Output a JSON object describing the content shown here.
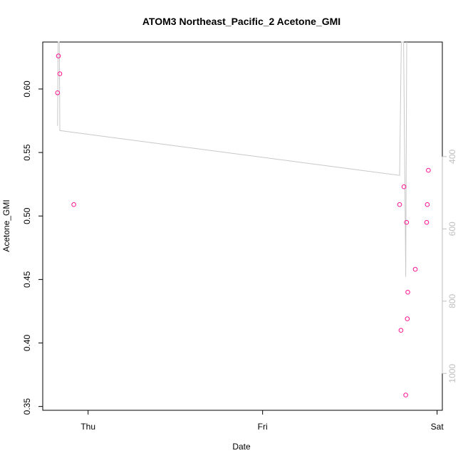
{
  "chart_data": {
    "type": "scatter",
    "title": "ATOM3 Northeast_Pacific_2 Acetone_GMI",
    "xlabel": "Date",
    "ylabel": "Acetone_GMI",
    "x_ticks": [
      "Thu",
      "Fri",
      "Sat"
    ],
    "y_ticks": [
      "0.35",
      "0.40",
      "0.45",
      "0.50",
      "0.55",
      "0.60"
    ],
    "y_right_ticks": [
      "400",
      "600",
      "800",
      "1000"
    ],
    "xlim": [
      -0.26,
      2.03
    ],
    "ylim": [
      0.347,
      0.637
    ],
    "y_right_lim": [
      83,
      1102
    ],
    "y_right_reversed": true,
    "grid": false,
    "colors": {
      "points": "#ff1493",
      "line": "#c8c8c8",
      "axis": "#000000",
      "right_axis": "#bebebe"
    },
    "series": [
      {
        "type": "scatter",
        "axis": "left",
        "points": [
          {
            "x": -0.175,
            "y": 0.597
          },
          {
            "x": -0.17,
            "y": 0.626
          },
          {
            "x": -0.162,
            "y": 0.612
          },
          {
            "x": -0.082,
            "y": 0.509
          },
          {
            "x": 1.785,
            "y": 0.509
          },
          {
            "x": 1.793,
            "y": 0.41
          },
          {
            "x": 1.81,
            "y": 0.523
          },
          {
            "x": 1.82,
            "y": 0.359
          },
          {
            "x": 1.825,
            "y": 0.495
          },
          {
            "x": 1.829,
            "y": 0.419
          },
          {
            "x": 1.832,
            "y": 0.44
          },
          {
            "x": 1.875,
            "y": 0.458
          },
          {
            "x": 1.94,
            "y": 0.495
          },
          {
            "x": 1.944,
            "y": 0.509
          },
          {
            "x": 1.95,
            "y": 0.536
          }
        ]
      },
      {
        "type": "line",
        "axis": "right",
        "points": [
          {
            "x": -0.175,
            "y": 315
          },
          {
            "x": -0.172,
            "y": 83
          },
          {
            "x": -0.165,
            "y": 83
          },
          {
            "x": -0.162,
            "y": 328
          },
          {
            "x": 1.785,
            "y": 452
          },
          {
            "x": 1.795,
            "y": 83
          },
          {
            "x": 1.808,
            "y": 83
          },
          {
            "x": 1.82,
            "y": 733
          },
          {
            "x": 1.826,
            "y": 83
          }
        ]
      }
    ]
  }
}
